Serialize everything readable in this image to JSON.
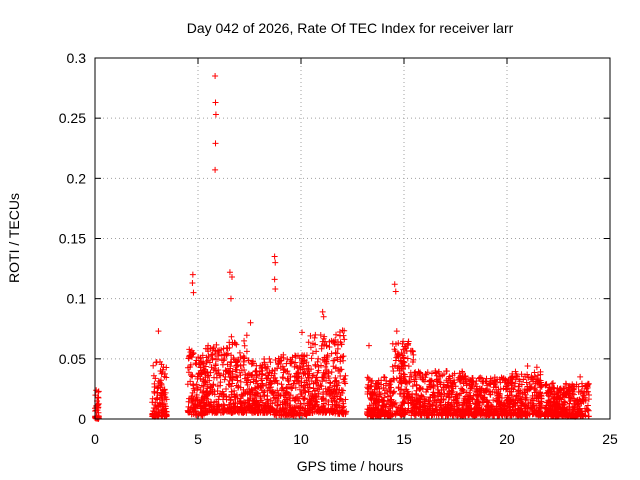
{
  "chart_data": {
    "type": "scatter",
    "title": "Day 042 of 2026, Rate Of TEC Index for receiver larr",
    "xlabel": "GPS time / hours",
    "ylabel": "ROTI / TECUs",
    "xlim": [
      0,
      25
    ],
    "ylim": [
      0,
      0.3
    ],
    "xticks": [
      "0",
      "5",
      "10",
      "15",
      "20",
      "25"
    ],
    "yticks": [
      "0",
      "0.05",
      "0.1",
      "0.15",
      "0.2",
      "0.25",
      "0.3"
    ],
    "grid": true,
    "marker": "+",
    "marker_color": "#ff0000",
    "notable_points": [
      {
        "x": 5.83,
        "y": 0.285
      },
      {
        "x": 5.85,
        "y": 0.263
      },
      {
        "x": 5.87,
        "y": 0.253
      },
      {
        "x": 5.85,
        "y": 0.229
      },
      {
        "x": 5.83,
        "y": 0.207
      },
      {
        "x": 4.75,
        "y": 0.12
      },
      {
        "x": 4.73,
        "y": 0.113
      },
      {
        "x": 4.78,
        "y": 0.105
      },
      {
        "x": 6.55,
        "y": 0.122
      },
      {
        "x": 6.65,
        "y": 0.118
      },
      {
        "x": 6.6,
        "y": 0.1
      },
      {
        "x": 8.72,
        "y": 0.135
      },
      {
        "x": 8.75,
        "y": 0.13
      },
      {
        "x": 8.72,
        "y": 0.116
      },
      {
        "x": 8.75,
        "y": 0.108
      },
      {
        "x": 7.55,
        "y": 0.08
      },
      {
        "x": 3.08,
        "y": 0.073
      },
      {
        "x": 10.05,
        "y": 0.072
      },
      {
        "x": 11.05,
        "y": 0.089
      },
      {
        "x": 11.1,
        "y": 0.085
      },
      {
        "x": 13.3,
        "y": 0.061
      },
      {
        "x": 14.55,
        "y": 0.112
      },
      {
        "x": 14.6,
        "y": 0.106
      },
      {
        "x": 14.65,
        "y": 0.073
      },
      {
        "x": 21.0,
        "y": 0.044
      },
      {
        "x": 21.45,
        "y": 0.043
      },
      {
        "x": 23.55,
        "y": 0.035
      }
    ],
    "clusters": [
      {
        "x_start": 0.0,
        "x_end": 0.2,
        "y_min": 0.0,
        "y_max": 0.024
      },
      {
        "x_start": 2.75,
        "x_end": 3.5,
        "y_min": 0.002,
        "y_max": 0.048
      },
      {
        "x_start": 4.5,
        "x_end": 5.3,
        "y_min": 0.003,
        "y_max": 0.06
      },
      {
        "x_start": 5.3,
        "x_end": 6.5,
        "y_min": 0.005,
        "y_max": 0.062
      },
      {
        "x_start": 6.5,
        "x_end": 7.4,
        "y_min": 0.005,
        "y_max": 0.07
      },
      {
        "x_start": 7.4,
        "x_end": 8.7,
        "y_min": 0.005,
        "y_max": 0.05
      },
      {
        "x_start": 8.7,
        "x_end": 10.3,
        "y_min": 0.003,
        "y_max": 0.055
      },
      {
        "x_start": 10.3,
        "x_end": 11.6,
        "y_min": 0.005,
        "y_max": 0.07
      },
      {
        "x_start": 11.6,
        "x_end": 12.2,
        "y_min": 0.004,
        "y_max": 0.075
      },
      {
        "x_start": 13.2,
        "x_end": 14.4,
        "y_min": 0.002,
        "y_max": 0.035
      },
      {
        "x_start": 14.4,
        "x_end": 15.5,
        "y_min": 0.003,
        "y_max": 0.065
      },
      {
        "x_start": 15.5,
        "x_end": 18.0,
        "y_min": 0.003,
        "y_max": 0.04
      },
      {
        "x_start": 18.0,
        "x_end": 20.2,
        "y_min": 0.003,
        "y_max": 0.035
      },
      {
        "x_start": 20.2,
        "x_end": 21.7,
        "y_min": 0.003,
        "y_max": 0.04
      },
      {
        "x_start": 21.8,
        "x_end": 24.0,
        "y_min": 0.002,
        "y_max": 0.03
      }
    ]
  }
}
